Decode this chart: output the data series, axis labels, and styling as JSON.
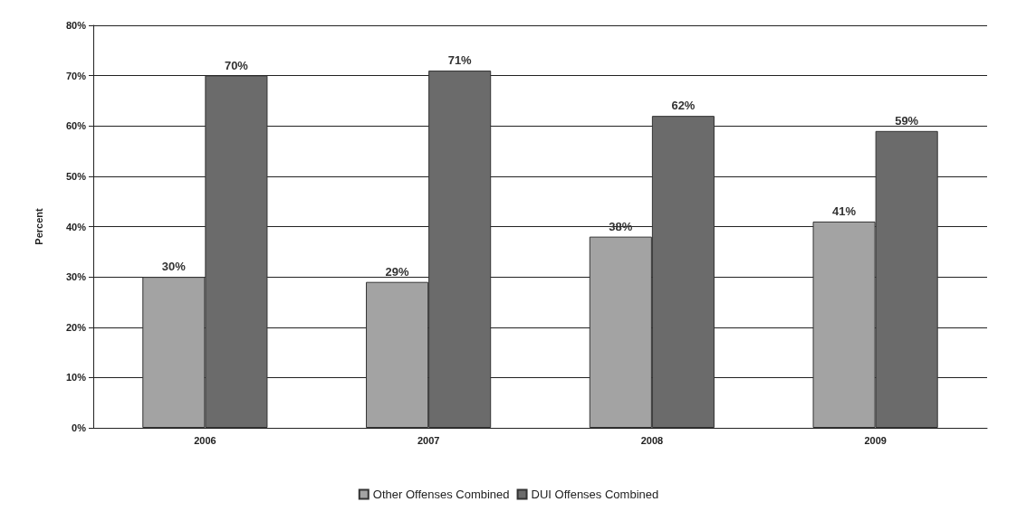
{
  "chart_data": {
    "type": "bar",
    "ylabel": "Percent",
    "categories": [
      "2006",
      "2007",
      "2008",
      "2009"
    ],
    "series": [
      {
        "name": "Other Offenses Combined",
        "color": "#a3a3a3",
        "values": [
          30,
          29,
          38,
          41
        ],
        "value_labels": [
          "30%",
          "29%",
          "38%",
          "41%"
        ]
      },
      {
        "name": "DUI Offenses Combined",
        "color": "#6b6b6b",
        "values": [
          70,
          71,
          62,
          59
        ],
        "value_labels": [
          "70%",
          "71%",
          "62%",
          "59%"
        ]
      }
    ],
    "ylim": [
      0,
      80
    ],
    "yticks": [
      {
        "value": 0,
        "label": "0%"
      },
      {
        "value": 10,
        "label": "10%"
      },
      {
        "value": 20,
        "label": "20%"
      },
      {
        "value": 30,
        "label": "30%"
      },
      {
        "value": 40,
        "label": "40%"
      },
      {
        "value": 50,
        "label": "50%"
      },
      {
        "value": 60,
        "label": "60%"
      },
      {
        "value": 70,
        "label": "70%"
      },
      {
        "value": 80,
        "label": "80%"
      }
    ],
    "grid": "y",
    "legend": "bottom"
  }
}
